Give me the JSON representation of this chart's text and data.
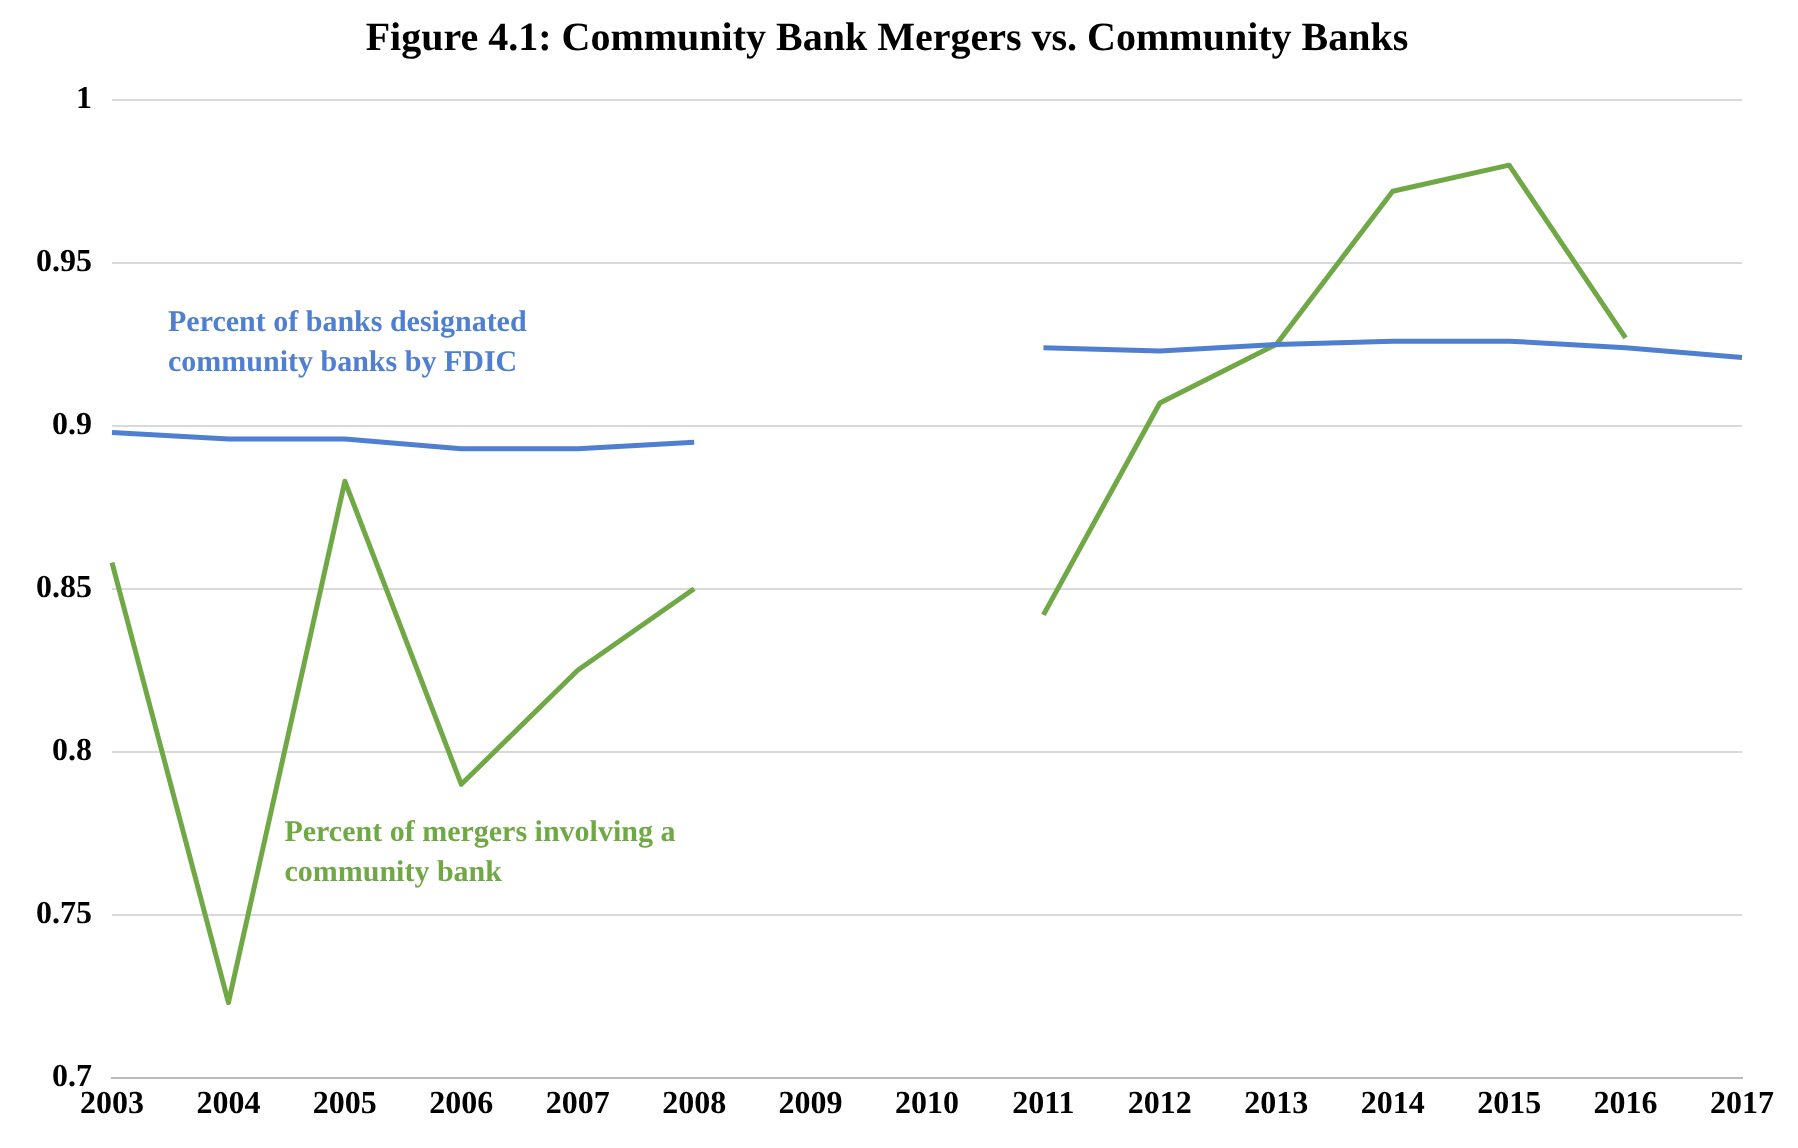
{
  "chart_data": {
    "type": "line",
    "title": "Figure 4.1: Community Bank Mergers vs. Community Banks",
    "categories": [
      "2003",
      "2004",
      "2005",
      "2006",
      "2007",
      "2008",
      "2009",
      "2010",
      "2011",
      "2012",
      "2013",
      "2014",
      "2015",
      "2016",
      "2017"
    ],
    "series": [
      {
        "name": "Percent of banks designated community banks by FDIC",
        "color": "#4f7fd0",
        "values": [
          0.898,
          0.896,
          0.896,
          0.893,
          0.893,
          0.895,
          null,
          null,
          0.924,
          0.923,
          0.925,
          0.926,
          0.926,
          0.924,
          0.921
        ]
      },
      {
        "name": "Percent of mergers involving a community bank",
        "color": "#6fa845",
        "values": [
          0.858,
          0.723,
          0.883,
          0.79,
          0.825,
          0.85,
          null,
          null,
          0.842,
          0.907,
          0.925,
          0.972,
          0.98,
          0.927,
          null
        ]
      }
    ],
    "ylim": [
      0.7,
      1
    ],
    "yticks": [
      0.7,
      0.75,
      0.8,
      0.85,
      0.9,
      0.95,
      1
    ],
    "grid": "y",
    "legend": false,
    "marker": "none",
    "line_style": "solid"
  }
}
